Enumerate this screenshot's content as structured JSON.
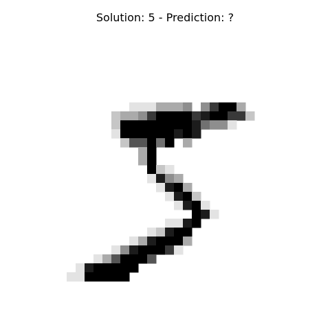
{
  "title": "Solution: 5 - Prediction: ?",
  "image": {
    "colormap": "gray_r",
    "rows": 28,
    "cols": 28,
    "pixels": [
      "............................",
      "............................",
      "............................",
      "............................",
      "............................",
      "............................",
      "............................",
      "..........1113334.47993.....",
      "........2334799997899772....",
      "........29999999985441......",
      "........1999999898..........",
      ".........266959.3...........",
      "...........39...............",
      "...........39...............",
      "............921.............",
      "............1843............",
      ".............1893...........",
      "..............1892..........",
      "...............1891.........",
      ".................981........",
      "..............1189..........",
      "............12899...........",
      "..........1389993...........",
      "........14899971............",
      "......1369996...............",
      "....1899999.................",
      "...1199999..................",
      "............................"
    ]
  }
}
